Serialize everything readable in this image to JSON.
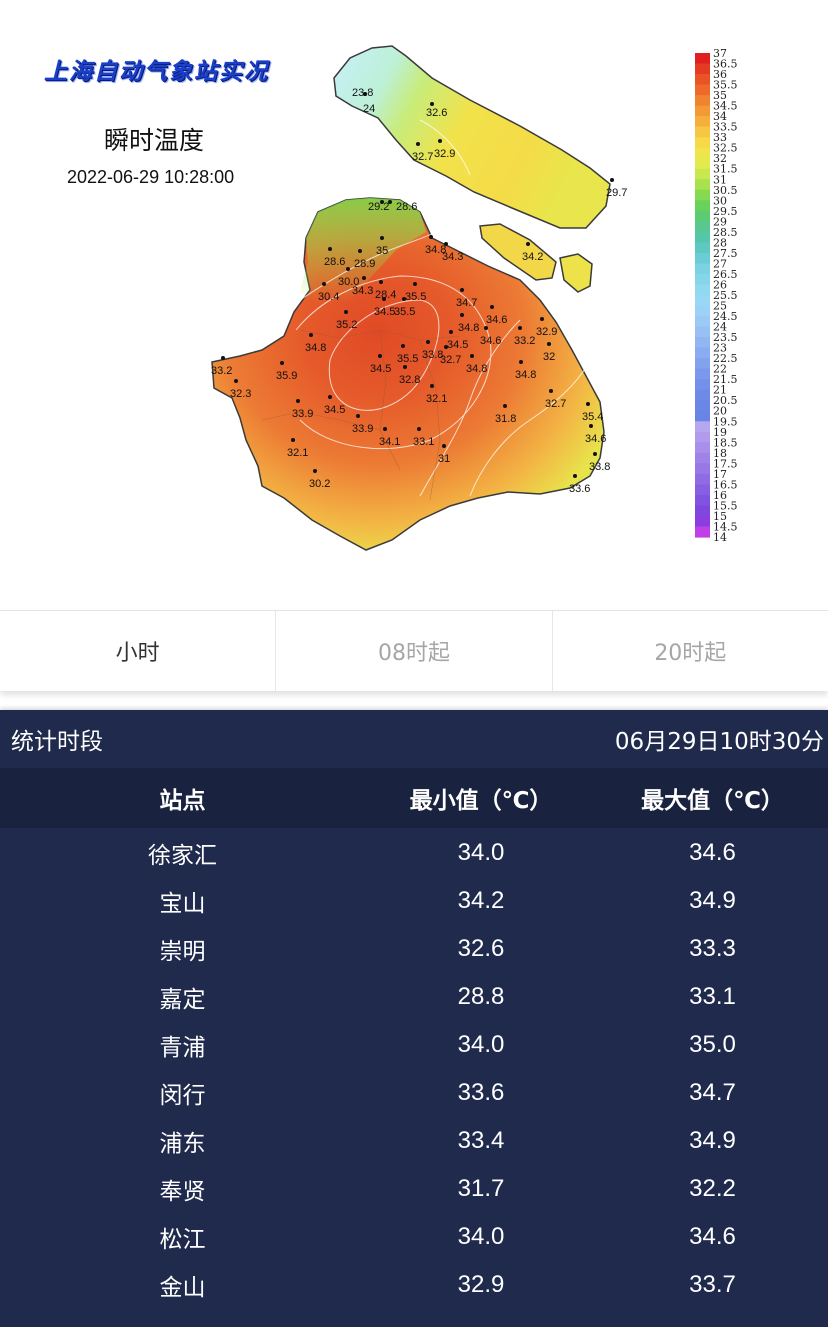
{
  "map": {
    "title": "上海自动气象站实况",
    "subtitle": "瞬时温度",
    "datetime": "2022-06-29 10:28:00",
    "colors": {
      "hot": "#e2552a",
      "warm": "#ee8a3a",
      "mild": "#f5c04a",
      "yellow": "#f2e24a",
      "green": "#7fd44a",
      "cool": "#aee8f0",
      "outline": "#3a3a3a"
    },
    "station_labels": [
      {
        "text": "23.8"
      },
      {
        "text": "24"
      },
      {
        "text": "32.6"
      },
      {
        "text": "32.7"
      },
      {
        "text": "32.9"
      },
      {
        "text": "29.7"
      },
      {
        "text": "29.2"
      },
      {
        "text": "28.6"
      },
      {
        "text": "35"
      },
      {
        "text": "34.8"
      },
      {
        "text": "34.3"
      },
      {
        "text": "34.2"
      },
      {
        "text": "28.6"
      },
      {
        "text": "28.9"
      },
      {
        "text": "30.0"
      },
      {
        "text": "34.3"
      },
      {
        "text": "30.4"
      },
      {
        "text": "28.4"
      },
      {
        "text": "35.5"
      },
      {
        "text": "34.7"
      },
      {
        "text": "34.5"
      },
      {
        "text": "35.5"
      },
      {
        "text": "35.2"
      },
      {
        "text": "34.8"
      },
      {
        "text": "34.6"
      },
      {
        "text": "32.9"
      },
      {
        "text": "34.8"
      },
      {
        "text": "34.5"
      },
      {
        "text": "34.6"
      },
      {
        "text": "33.2"
      },
      {
        "text": "32"
      },
      {
        "text": "33.2"
      },
      {
        "text": "35.5"
      },
      {
        "text": "33.8"
      },
      {
        "text": "32.7"
      },
      {
        "text": "34.8"
      },
      {
        "text": "35.9"
      },
      {
        "text": "34.5"
      },
      {
        "text": "32.8"
      },
      {
        "text": "34.8"
      },
      {
        "text": "32.3"
      },
      {
        "text": "32.1"
      },
      {
        "text": "33.9"
      },
      {
        "text": "34.5"
      },
      {
        "text": "31.8"
      },
      {
        "text": "32.7"
      },
      {
        "text": "35.4"
      },
      {
        "text": "33.9"
      },
      {
        "text": "34.1"
      },
      {
        "text": "33.1"
      },
      {
        "text": "34.6"
      },
      {
        "text": "32.1"
      },
      {
        "text": "31"
      },
      {
        "text": "33.8"
      },
      {
        "text": "30.2"
      },
      {
        "text": "33.6"
      }
    ],
    "legend": {
      "labels": [
        "37",
        "36.5",
        "36",
        "35.5",
        "35",
        "34.5",
        "34",
        "33.5",
        "33",
        "32.5",
        "32",
        "31.5",
        "31",
        "30.5",
        "30",
        "29.5",
        "29",
        "28.5",
        "28",
        "27.5",
        "27",
        "26.5",
        "26",
        "25.5",
        "25",
        "24.5",
        "24",
        "23.5",
        "23",
        "22.5",
        "22",
        "21.5",
        "21",
        "20.5",
        "20",
        "19.5",
        "19",
        "18.5",
        "18",
        "17.5",
        "17",
        "16.5",
        "16",
        "15.5",
        "15",
        "14.5",
        "14"
      ],
      "colors": [
        "#e02020",
        "#e63a22",
        "#ea5424",
        "#ee6a28",
        "#f08230",
        "#f39a36",
        "#f5b03c",
        "#f7c642",
        "#f6d848",
        "#f0e44c",
        "#e2ea4e",
        "#c8e84e",
        "#a8e24e",
        "#86da50",
        "#68d25a",
        "#5ccc72",
        "#58c88e",
        "#56c6a8",
        "#5ec8c2",
        "#6cccd6",
        "#7ad2e2",
        "#86d6ea",
        "#90daf0",
        "#98d8f4",
        "#9cd2f6",
        "#9ccaf6",
        "#98c0f4",
        "#92b6f2",
        "#8aacf0",
        "#82a2ee",
        "#7a98ec",
        "#7490ea",
        "#6e8ae8",
        "#6a86e6",
        "#6884e4",
        "#b7a7ee",
        "#b09bec",
        "#a88fea",
        "#a083e8",
        "#9877e6",
        "#906be4",
        "#885fe2",
        "#8053e0",
        "#8047de",
        "#8a3ee0",
        "#c040e6",
        "#e040ec"
      ]
    }
  },
  "tabs": [
    "小时",
    "08时起",
    "20时起"
  ],
  "stats": {
    "period_label": "统计时段",
    "period_value": "06月29日10时30分",
    "columns": [
      "站点",
      "最小值（℃）",
      "最大值（℃）"
    ],
    "rows": [
      {
        "station": "徐家汇",
        "min": "34.0",
        "max": "34.6"
      },
      {
        "station": "宝山",
        "min": "34.2",
        "max": "34.9"
      },
      {
        "station": "崇明",
        "min": "32.6",
        "max": "33.3"
      },
      {
        "station": "嘉定",
        "min": "28.8",
        "max": "33.1"
      },
      {
        "station": "青浦",
        "min": "34.0",
        "max": "35.0"
      },
      {
        "station": "闵行",
        "min": "33.6",
        "max": "34.7"
      },
      {
        "station": "浦东",
        "min": "33.4",
        "max": "34.9"
      },
      {
        "station": "奉贤",
        "min": "31.7",
        "max": "32.2"
      },
      {
        "station": "松江",
        "min": "34.0",
        "max": "34.6"
      },
      {
        "station": "金山",
        "min": "32.9",
        "max": "33.7"
      }
    ]
  }
}
